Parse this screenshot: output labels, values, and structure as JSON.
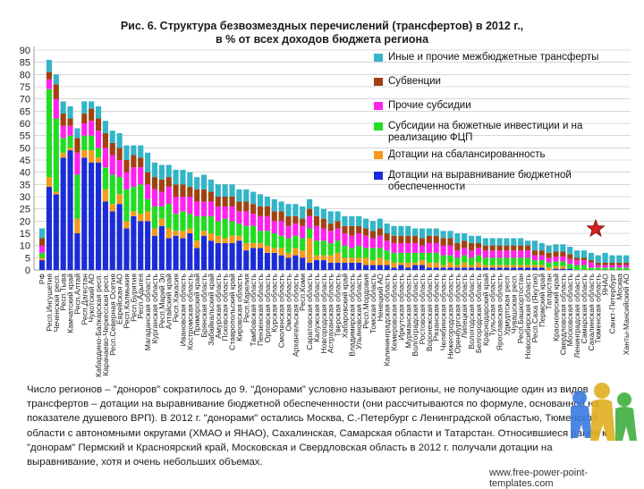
{
  "page": {
    "title_line1": "Рис. 6. Структура безвозмездных перечислений (трансфертов) в 2012 г.,",
    "title_line2": "в % от всех доходов бюджета региона",
    "paragraph": "Число регионов – \"доноров\" сократилось до 9. \"Донорами\" условно называют регионы, не получающие один из видов трансфертов – дотации на выравнивание бюджетной обеспеченности (они рассчитываются по формуле, основанной на показателе душевого ВРП). В 2012 г. \"донорами\" остались Москва, С.-Петербург с Ленинградской областью, Тюменской области с автономными округами (ХМАО и ЯНАО), Сахалинская, Самарская области и Татарстан. Относившиеся ранее к \"донорам\" Пермский и Красноярский край, Московская и Свердловская область в 2012 г. получали дотации на выравнивание, хотя и очень небольших объемах.",
    "footer_url": "www.free-power-point-templates.com"
  },
  "colors": {
    "other": "#33b5c8",
    "subventions": "#a0420f",
    "subsidies": "#ff22ee",
    "invest": "#22dd22",
    "balance": "#f59a1a",
    "equalization": "#1a2cd8"
  },
  "chart_data": {
    "type": "bar",
    "stacked": true,
    "title": "Рис. 6. Структура безвозмездных перечислений (трансфертов) в 2012 г., в % от всех доходов бюджета региона",
    "ylim": [
      0,
      90
    ],
    "yticks": [
      0,
      5,
      10,
      15,
      20,
      25,
      30,
      35,
      40,
      45,
      50,
      55,
      60,
      65,
      70,
      75,
      80,
      85,
      90
    ],
    "grid": true,
    "legend_position": "right",
    "series": [
      {
        "name": "Иные и прочие межбюджетные трансферты",
        "key": "other"
      },
      {
        "name": "Субвенции",
        "key": "subventions"
      },
      {
        "name": "Прочие субсидии",
        "key": "subsidies"
      },
      {
        "name": "Субсидии на бюжетные инвестиции и на реализацию ФЦП",
        "key": "invest"
      },
      {
        "name": "Дотации на сбалансированность",
        "key": "balance"
      },
      {
        "name": "Дотации на выравнивание бюджетной обеспеченности",
        "key": "equalization"
      }
    ],
    "categories": [
      "РФ",
      "Респ.Ингушетия",
      "Чеченская респ.",
      "Респ.Тыва",
      "Камчатский край",
      "Респ.Алтай",
      "Респ.Дагестан",
      "Чукотский АО",
      "Кабардино-Балкарская респ.",
      "Карачаево-Черкесская респ.",
      "Респ.Северная Осетия",
      "Еврейская АО",
      "Респ.Калмыкия",
      "Респ.Бурятия",
      "Респ.Адыгея",
      "Магаданская область",
      "Курганская область",
      "Респ.Марий Эл",
      "Алтайский край",
      "Респ.Хакасия",
      "Ивановская область",
      "Костромская область",
      "Приморский край",
      "Брянская область",
      "Забайкальский край",
      "Амурская область",
      "Псковская область",
      "Ставропольский край",
      "Кировская область",
      "Респ.Карелия",
      "Тамбовская область",
      "Пензенская область",
      "Орловская область",
      "Курская область",
      "Смоленская область",
      "Омская область",
      "Архангельская область",
      "Респ.Коми",
      "Саратовская область",
      "Калужская область",
      "Новгородская область",
      "Астраханская область",
      "Тверская область",
      "Хабаровский край",
      "Владимирская область",
      "Ульяновская область",
      "Респ.Мордовия",
      "Томская область",
      "Ненецкий АО",
      "Калининградская область",
      "Кемеровская область",
      "Иркутская область",
      "Мурманская область",
      "Волгоградская область",
      "Ростовская область",
      "Воронежская область",
      "Рязанская область",
      "Челябинская область",
      "Нижегородская область",
      "Оренбургская область",
      "Липецкая область",
      "Вологодская область",
      "Белгородская область",
      "Краснодарский край",
      "Тульская область",
      "Ярославская область",
      "Удмуртская респ.",
      "Чувашская респ.",
      "Респ.Башкортостан",
      "Новосибирская область",
      "Респ.Саха (Якутия)",
      "Пермский край",
      "Татарстан",
      "Красноярский край",
      "Свердловская область",
      "Московская область",
      "Ленинградская область",
      "Самарская область",
      "Сахалинская область",
      "Тюменская область",
      "ЯНАО",
      "Санкт-Петербург",
      "Москва",
      "Ханты-Мансийский АО"
    ],
    "values": {
      "equalization": [
        4,
        34,
        31,
        46,
        49,
        15,
        46,
        44,
        44,
        28,
        24,
        27,
        17,
        22,
        20,
        20,
        14,
        18,
        13,
        14,
        13,
        15,
        9,
        14,
        12,
        11,
        11,
        11,
        12,
        8,
        9,
        9,
        7,
        7,
        6,
        5,
        6,
        5,
        3,
        4,
        4,
        3,
        3,
        3,
        3,
        3,
        2,
        2,
        2,
        2,
        1,
        2,
        1,
        2,
        2,
        1,
        1,
        1,
        1,
        1,
        1,
        1,
        1,
        1,
        1,
        1,
        1,
        1,
        1,
        1,
        1,
        1,
        0,
        0.5,
        0.5,
        0.5,
        0,
        0,
        0,
        0,
        0,
        0,
        0,
        0
      ],
      "balance": [
        1,
        4,
        1,
        2,
        1,
        6,
        3,
        5,
        2,
        5,
        3,
        4,
        3,
        2,
        3,
        4,
        3,
        3,
        4,
        2,
        3,
        2,
        3,
        2,
        3,
        3,
        2,
        3,
        2,
        3,
        2,
        2,
        3,
        2,
        3,
        2,
        3,
        3,
        10,
        2,
        2,
        3,
        4,
        2,
        2,
        2,
        3,
        2,
        3,
        2,
        2,
        1,
        2,
        1,
        2,
        2,
        2,
        1,
        2,
        1,
        2,
        1,
        2,
        1,
        1,
        1,
        1,
        1,
        1,
        1,
        1,
        1,
        1,
        1,
        1,
        0,
        0,
        0,
        0,
        0,
        0,
        0,
        0,
        0
      ],
      "invest": [
        2,
        36,
        30,
        6,
        5,
        18,
        6,
        6,
        4,
        9,
        12,
        7,
        13,
        10,
        12,
        5,
        9,
        5,
        10,
        7,
        8,
        6,
        10,
        6,
        7,
        6,
        8,
        6,
        5,
        7,
        7,
        5,
        6,
        6,
        5,
        6,
        5,
        5,
        4,
        6,
        6,
        5,
        5,
        5,
        4,
        5,
        4,
        5,
        4,
        4,
        4,
        4,
        4,
        4,
        3,
        4,
        4,
        4,
        3,
        3,
        3,
        3,
        3,
        3,
        3,
        3,
        3,
        3,
        3,
        3,
        2,
        2,
        2,
        2,
        2,
        2,
        2,
        2,
        1,
        1,
        1,
        1,
        1,
        1
      ],
      "subsidies": [
        3,
        4,
        8,
        5,
        4,
        9,
        5,
        6,
        7,
        8,
        8,
        7,
        7,
        8,
        7,
        6,
        7,
        6,
        7,
        7,
        6,
        7,
        6,
        6,
        6,
        6,
        5,
        6,
        5,
        6,
        5,
        6,
        6,
        5,
        6,
        5,
        5,
        5,
        5,
        6,
        5,
        5,
        5,
        5,
        5,
        5,
        5,
        4,
        5,
        4,
        4,
        4,
        4,
        4,
        3,
        4,
        4,
        4,
        4,
        3,
        3,
        3,
        3,
        3,
        3,
        3,
        3,
        3,
        3,
        3,
        2,
        2,
        2,
        2,
        2,
        2,
        2,
        2,
        2,
        1,
        1,
        1,
        1,
        1
      ],
      "subventions": [
        3,
        3,
        6,
        5,
        3,
        6,
        4,
        5,
        5,
        6,
        5,
        5,
        5,
        5,
        4,
        5,
        5,
        5,
        4,
        5,
        5,
        4,
        5,
        5,
        4,
        4,
        4,
        4,
        4,
        4,
        4,
        4,
        4,
        4,
        4,
        4,
        3,
        3,
        3,
        4,
        4,
        3,
        3,
        3,
        4,
        3,
        3,
        3,
        3,
        3,
        3,
        3,
        3,
        3,
        3,
        3,
        3,
        3,
        3,
        3,
        3,
        3,
        2,
        2,
        2,
        2,
        2,
        2,
        2,
        2,
        2,
        2,
        2,
        2,
        2,
        2,
        1,
        1,
        1,
        1,
        1,
        1,
        1,
        1
      ],
      "other": [
        4,
        5,
        4,
        5,
        5,
        4,
        5,
        3,
        5,
        5,
        5,
        6,
        6,
        4,
        5,
        8,
        6,
        6,
        5,
        6,
        6,
        6,
        5,
        6,
        5,
        5,
        5,
        5,
        5,
        5,
        5,
        5,
        4,
        5,
        4,
        5,
        5,
        5,
        4,
        4,
        4,
        5,
        4,
        4,
        4,
        4,
        4,
        4,
        4,
        4,
        4,
        4,
        4,
        3,
        4,
        3,
        3,
        3,
        3,
        4,
        3,
        3,
        3,
        3,
        3,
        3,
        3,
        3,
        3,
        2,
        4,
        3,
        3,
        3,
        3,
        3,
        3,
        3,
        3,
        3,
        4,
        3,
        3,
        3
      ]
    }
  }
}
